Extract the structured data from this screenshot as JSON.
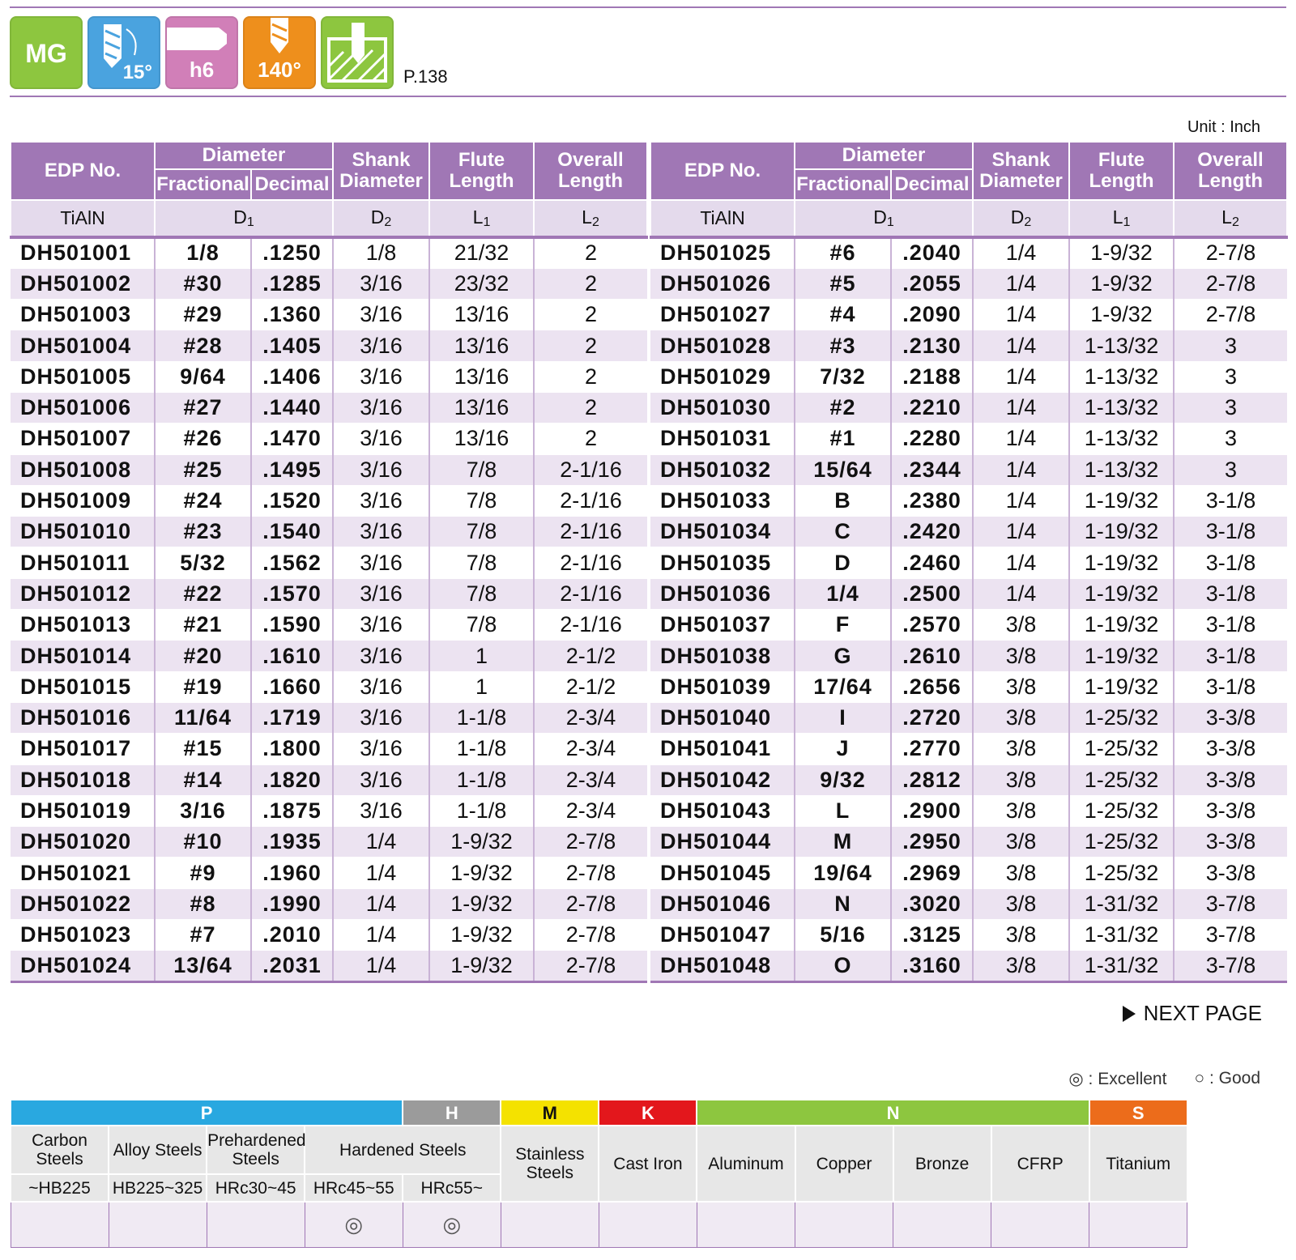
{
  "header": {
    "icons": [
      {
        "name": "mg-grade",
        "label": "MG",
        "color": "#8dc63f"
      },
      {
        "name": "helix-angle",
        "label": "15°",
        "color": "#4aa3df"
      },
      {
        "name": "shank-tolerance",
        "label": "h6",
        "color": "#d17fb8"
      },
      {
        "name": "point-angle",
        "label": "140°",
        "color": "#ee8f1c"
      },
      {
        "name": "hole-type",
        "label": "",
        "color": "#8dc63f"
      }
    ],
    "page_ref": "P.138"
  },
  "unit": "Unit : Inch",
  "table": {
    "headers": {
      "edp": "EDP No.",
      "diameter": "Diameter",
      "fractional": "Fractional",
      "decimal": "Decimal",
      "shank": "Shank Diameter",
      "flute": "Flute Length",
      "overall": "Overall Length"
    },
    "sub": {
      "coating": "TiAlN",
      "d1": "D1",
      "d2": "D2",
      "l1": "L1",
      "l2": "L2"
    },
    "left": [
      [
        "DH501001",
        "1/8",
        ".1250",
        "1/8",
        "21/32",
        "2"
      ],
      [
        "DH501002",
        "#30",
        ".1285",
        "3/16",
        "23/32",
        "2"
      ],
      [
        "DH501003",
        "#29",
        ".1360",
        "3/16",
        "13/16",
        "2"
      ],
      [
        "DH501004",
        "#28",
        ".1405",
        "3/16",
        "13/16",
        "2"
      ],
      [
        "DH501005",
        "9/64",
        ".1406",
        "3/16",
        "13/16",
        "2"
      ],
      [
        "DH501006",
        "#27",
        ".1440",
        "3/16",
        "13/16",
        "2"
      ],
      [
        "DH501007",
        "#26",
        ".1470",
        "3/16",
        "13/16",
        "2"
      ],
      [
        "DH501008",
        "#25",
        ".1495",
        "3/16",
        "7/8",
        "2-1/16"
      ],
      [
        "DH501009",
        "#24",
        ".1520",
        "3/16",
        "7/8",
        "2-1/16"
      ],
      [
        "DH501010",
        "#23",
        ".1540",
        "3/16",
        "7/8",
        "2-1/16"
      ],
      [
        "DH501011",
        "5/32",
        ".1562",
        "3/16",
        "7/8",
        "2-1/16"
      ],
      [
        "DH501012",
        "#22",
        ".1570",
        "3/16",
        "7/8",
        "2-1/16"
      ],
      [
        "DH501013",
        "#21",
        ".1590",
        "3/16",
        "7/8",
        "2-1/16"
      ],
      [
        "DH501014",
        "#20",
        ".1610",
        "3/16",
        "1",
        "2-1/2"
      ],
      [
        "DH501015",
        "#19",
        ".1660",
        "3/16",
        "1",
        "2-1/2"
      ],
      [
        "DH501016",
        "11/64",
        ".1719",
        "3/16",
        "1-1/8",
        "2-3/4"
      ],
      [
        "DH501017",
        "#15",
        ".1800",
        "3/16",
        "1-1/8",
        "2-3/4"
      ],
      [
        "DH501018",
        "#14",
        ".1820",
        "3/16",
        "1-1/8",
        "2-3/4"
      ],
      [
        "DH501019",
        "3/16",
        ".1875",
        "3/16",
        "1-1/8",
        "2-3/4"
      ],
      [
        "DH501020",
        "#10",
        ".1935",
        "1/4",
        "1-9/32",
        "2-7/8"
      ],
      [
        "DH501021",
        "#9",
        ".1960",
        "1/4",
        "1-9/32",
        "2-7/8"
      ],
      [
        "DH501022",
        "#8",
        ".1990",
        "1/4",
        "1-9/32",
        "2-7/8"
      ],
      [
        "DH501023",
        "#7",
        ".2010",
        "1/4",
        "1-9/32",
        "2-7/8"
      ],
      [
        "DH501024",
        "13/64",
        ".2031",
        "1/4",
        "1-9/32",
        "2-7/8"
      ]
    ],
    "right": [
      [
        "DH501025",
        "#6",
        ".2040",
        "1/4",
        "1-9/32",
        "2-7/8"
      ],
      [
        "DH501026",
        "#5",
        ".2055",
        "1/4",
        "1-9/32",
        "2-7/8"
      ],
      [
        "DH501027",
        "#4",
        ".2090",
        "1/4",
        "1-9/32",
        "2-7/8"
      ],
      [
        "DH501028",
        "#3",
        ".2130",
        "1/4",
        "1-13/32",
        "3"
      ],
      [
        "DH501029",
        "7/32",
        ".2188",
        "1/4",
        "1-13/32",
        "3"
      ],
      [
        "DH501030",
        "#2",
        ".2210",
        "1/4",
        "1-13/32",
        "3"
      ],
      [
        "DH501031",
        "#1",
        ".2280",
        "1/4",
        "1-13/32",
        "3"
      ],
      [
        "DH501032",
        "15/64",
        ".2344",
        "1/4",
        "1-13/32",
        "3"
      ],
      [
        "DH501033",
        "B",
        ".2380",
        "1/4",
        "1-19/32",
        "3-1/8"
      ],
      [
        "DH501034",
        "C",
        ".2420",
        "1/4",
        "1-19/32",
        "3-1/8"
      ],
      [
        "DH501035",
        "D",
        ".2460",
        "1/4",
        "1-19/32",
        "3-1/8"
      ],
      [
        "DH501036",
        "1/4",
        ".2500",
        "1/4",
        "1-19/32",
        "3-1/8"
      ],
      [
        "DH501037",
        "F",
        ".2570",
        "3/8",
        "1-19/32",
        "3-1/8"
      ],
      [
        "DH501038",
        "G",
        ".2610",
        "3/8",
        "1-19/32",
        "3-1/8"
      ],
      [
        "DH501039",
        "17/64",
        ".2656",
        "3/8",
        "1-19/32",
        "3-1/8"
      ],
      [
        "DH501040",
        "I",
        ".2720",
        "3/8",
        "1-25/32",
        "3-3/8"
      ],
      [
        "DH501041",
        "J",
        ".2770",
        "3/8",
        "1-25/32",
        "3-3/8"
      ],
      [
        "DH501042",
        "9/32",
        ".2812",
        "3/8",
        "1-25/32",
        "3-3/8"
      ],
      [
        "DH501043",
        "L",
        ".2900",
        "3/8",
        "1-25/32",
        "3-3/8"
      ],
      [
        "DH501044",
        "M",
        ".2950",
        "3/8",
        "1-25/32",
        "3-3/8"
      ],
      [
        "DH501045",
        "19/64",
        ".2969",
        "3/8",
        "1-25/32",
        "3-3/8"
      ],
      [
        "DH501046",
        "N",
        ".3020",
        "3/8",
        "1-31/32",
        "3-7/8"
      ],
      [
        "DH501047",
        "5/16",
        ".3125",
        "3/8",
        "1-31/32",
        "3-7/8"
      ],
      [
        "DH501048",
        "O",
        ".3160",
        "3/8",
        "1-31/32",
        "3-7/8"
      ]
    ]
  },
  "next_page": "NEXT PAGE",
  "legend": {
    "excellent": "◎ : Excellent",
    "good": "○ : Good"
  },
  "materials": {
    "groups": [
      {
        "label": "P",
        "color": "#29a8e0"
      },
      {
        "label": "H",
        "color": "#9b9b9b"
      },
      {
        "label": "M",
        "color": "#f4e200"
      },
      {
        "label": "K",
        "color": "#e3171c"
      },
      {
        "label": "N",
        "color": "#8dc63f"
      },
      {
        "label": "S",
        "color": "#ec6c1b"
      }
    ],
    "carbon": "Carbon Steels",
    "carbon_hb": "~HB225",
    "alloy": "Alloy Steels",
    "alloy_hb": "HB225~325",
    "prehard": "Prehardened Steels",
    "prehard_hrc": "HRc30~45",
    "hardened": "Hardened Steels",
    "hard1": "HRc45~55",
    "hard2": "HRc55~",
    "stainless": "Stainless Steels",
    "castiron": "Cast Iron",
    "aluminum": "Aluminum",
    "copper": "Copper",
    "bronze": "Bronze",
    "cfrp": "CFRP",
    "titanium": "Titanium",
    "ratings": [
      "",
      "",
      "",
      "◎",
      "◎",
      "",
      "",
      "",
      "",
      "",
      "",
      "",
      ""
    ]
  }
}
